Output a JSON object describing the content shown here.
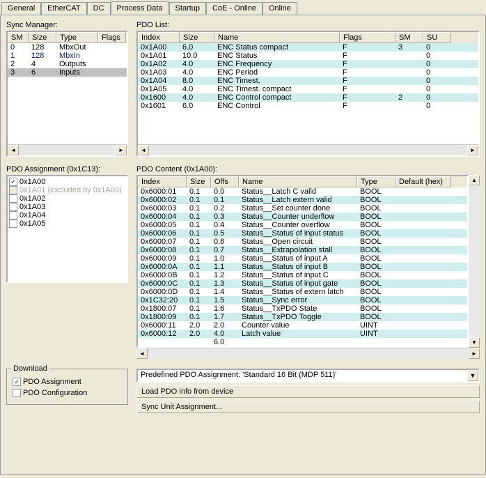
{
  "tabs": [
    "General",
    "EtherCAT",
    "DC",
    "Process Data",
    "Startup",
    "CoE - Online",
    "Online"
  ],
  "active_tab": 3,
  "labels": {
    "sync_manager": "Sync Manager:",
    "pdo_list": "PDO List:",
    "pdo_assignment": "PDO Assignment (0x1C13):",
    "pdo_content": "PDO Content (0x1A00):",
    "download": "Download",
    "pdo_assign_chk": "PDO Assignment",
    "pdo_config_chk": "PDO Configuration",
    "load_pdo": "Load PDO info from device",
    "sync_unit": "Sync Unit Assignment..."
  },
  "predefined": "Predefined PDO Assignment: 'Standard 16 Bit (MDP 511)'",
  "sync_manager": {
    "headers": [
      "SM",
      "Size",
      "Type",
      "Flags"
    ],
    "rows": [
      {
        "c": [
          "0",
          "128",
          "MbxOut",
          ""
        ],
        "sel": false
      },
      {
        "c": [
          "1",
          "128",
          "MbxIn",
          ""
        ],
        "sel": true
      },
      {
        "c": [
          "2",
          "4",
          "Outputs",
          ""
        ],
        "sel": false
      },
      {
        "c": [
          "3",
          "6",
          "Inputs",
          ""
        ],
        "sel": false,
        "grey": true
      }
    ]
  },
  "pdo_list": {
    "headers": [
      "Index",
      "Size",
      "Name",
      "Flags",
      "SM",
      "SU"
    ],
    "rows": [
      {
        "c": [
          "0x1A00",
          "6.0",
          "ENC Status compact",
          "F",
          "3",
          "0"
        ],
        "s": true
      },
      {
        "c": [
          "0x1A01",
          "10.0",
          "ENC Status",
          "F",
          "",
          "0"
        ],
        "s": false
      },
      {
        "c": [
          "0x1A02",
          "4.0",
          "ENC Frequency",
          "F",
          "",
          "0"
        ],
        "s": true
      },
      {
        "c": [
          "0x1A03",
          "4.0",
          "ENC Period",
          "F",
          "",
          "0"
        ],
        "s": false
      },
      {
        "c": [
          "0x1A04",
          "8.0",
          "ENC Timest.",
          "F",
          "",
          "0"
        ],
        "s": true
      },
      {
        "c": [
          "0x1A05",
          "4.0",
          "ENC Timest. compact",
          "F",
          "",
          "0"
        ],
        "s": false
      },
      {
        "c": [
          "0x1600",
          "4.0",
          "ENC Control compact",
          "F",
          "2",
          "0"
        ],
        "s": true
      },
      {
        "c": [
          "0x1601",
          "6.0",
          "ENC Control",
          "F",
          "",
          "0"
        ],
        "s": false
      }
    ]
  },
  "pdo_assign_items": [
    {
      "label": "0x1A00",
      "checked": true,
      "disabled": false
    },
    {
      "label": "0x1A01 (excluded by 0x1A00)",
      "checked": false,
      "disabled": true
    },
    {
      "label": "0x1A02",
      "checked": false,
      "disabled": false
    },
    {
      "label": "0x1A03",
      "checked": false,
      "disabled": false
    },
    {
      "label": "0x1A04",
      "checked": false,
      "disabled": false
    },
    {
      "label": "0x1A05",
      "checked": false,
      "disabled": false
    }
  ],
  "pdo_content": {
    "headers": [
      "Index",
      "Size",
      "Offs",
      "Name",
      "Type",
      "Default (hex)"
    ],
    "rows": [
      {
        "c": [
          "0x6000:01",
          "0.1",
          "0.0",
          "Status__Latch C valid",
          "BOOL",
          ""
        ],
        "s": false
      },
      {
        "c": [
          "0x6000:02",
          "0.1",
          "0.1",
          "Status__Latch extern valid",
          "BOOL",
          ""
        ],
        "s": true
      },
      {
        "c": [
          "0x6000:03",
          "0.1",
          "0.2",
          "Status__Set counter done",
          "BOOL",
          ""
        ],
        "s": false
      },
      {
        "c": [
          "0x6000:04",
          "0.1",
          "0.3",
          "Status__Counter underflow",
          "BOOL",
          ""
        ],
        "s": true
      },
      {
        "c": [
          "0x6000:05",
          "0.1",
          "0.4",
          "Status__Counter overflow",
          "BOOL",
          ""
        ],
        "s": false
      },
      {
        "c": [
          "0x6000:06",
          "0.1",
          "0.5",
          "Status__Status of input status",
          "BOOL",
          ""
        ],
        "s": true
      },
      {
        "c": [
          "0x6000:07",
          "0.1",
          "0.6",
          "Status__Open circuit",
          "BOOL",
          ""
        ],
        "s": false
      },
      {
        "c": [
          "0x6000:08",
          "0.1",
          "0.7",
          "Status__Extrapolation stall",
          "BOOL",
          ""
        ],
        "s": true
      },
      {
        "c": [
          "0x6000:09",
          "0.1",
          "1.0",
          "Status__Status of input A",
          "BOOL",
          ""
        ],
        "s": false
      },
      {
        "c": [
          "0x6000:0A",
          "0.1",
          "1.1",
          "Status__Status of input B",
          "BOOL",
          ""
        ],
        "s": true
      },
      {
        "c": [
          "0x6000:0B",
          "0.1",
          "1.2",
          "Status__Status of input C",
          "BOOL",
          ""
        ],
        "s": false
      },
      {
        "c": [
          "0x6000:0C",
          "0.1",
          "1.3",
          "Status__Status of input gate",
          "BOOL",
          ""
        ],
        "s": true
      },
      {
        "c": [
          "0x6000:0D",
          "0.1",
          "1.4",
          "Status__Status of extern latch",
          "BOOL",
          ""
        ],
        "s": false
      },
      {
        "c": [
          "0x1C32:20",
          "0.1",
          "1.5",
          "Status__Sync error",
          "BOOL",
          ""
        ],
        "s": true
      },
      {
        "c": [
          "0x1800:07",
          "0.1",
          "1.6",
          "Status__TxPDO State",
          "BOOL",
          ""
        ],
        "s": false
      },
      {
        "c": [
          "0x1800:09",
          "0.1",
          "1.7",
          "Status__TxPDO Toggle",
          "BOOL",
          ""
        ],
        "s": true
      },
      {
        "c": [
          "0x6000:11",
          "2.0",
          "2.0",
          "Counter value",
          "UINT",
          ""
        ],
        "s": false
      },
      {
        "c": [
          "0x6000:12",
          "2.0",
          "4.0",
          "Latch value",
          "UINT",
          ""
        ],
        "s": true
      },
      {
        "c": [
          "",
          "",
          "6.0",
          "",
          "",
          ""
        ],
        "s": false
      }
    ]
  },
  "download_checks": [
    {
      "label_key": "pdo_assign_chk",
      "checked": true
    },
    {
      "label_key": "pdo_config_chk",
      "checked": false
    }
  ]
}
